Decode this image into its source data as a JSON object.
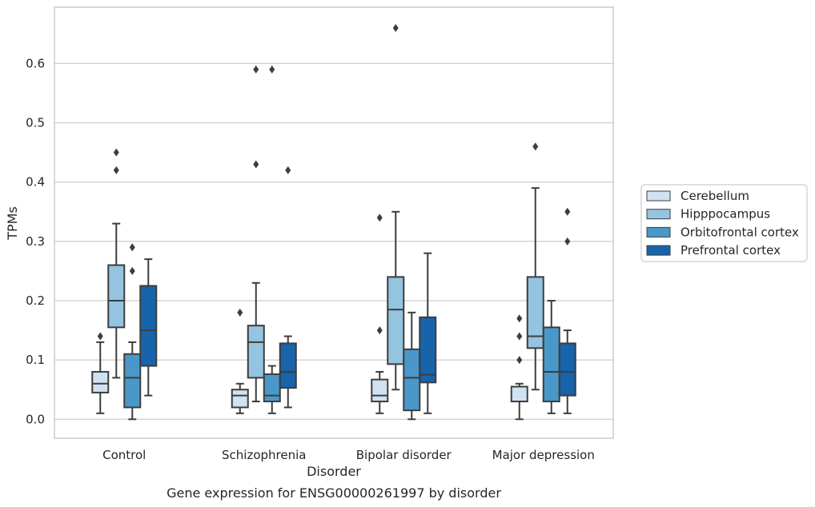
{
  "chart_data": {
    "type": "box",
    "xlabel": "Disorder",
    "ylabel": "TPMs",
    "caption": "Gene expression for ENSG00000261997 by disorder",
    "yticks": [
      "0.0",
      "0.1",
      "0.2",
      "0.3",
      "0.4",
      "0.5",
      "0.6"
    ],
    "ylim": [
      -0.032,
      0.695
    ],
    "grid": true,
    "legend_position": "right",
    "categories": [
      "Control",
      "Schizophrenia",
      "Bipolar disorder",
      "Major depression"
    ],
    "series": [
      {
        "name": "Cerebellum",
        "color": "#d0e1f2",
        "boxes": [
          {
            "whislo": 0.01,
            "q1": 0.045,
            "med": 0.06,
            "q3": 0.08,
            "whishi": 0.13,
            "fliers": [
              0.14
            ]
          },
          {
            "whislo": 0.01,
            "q1": 0.02,
            "med": 0.04,
            "q3": 0.05,
            "whishi": 0.06,
            "fliers": [
              0.18
            ]
          },
          {
            "whislo": 0.01,
            "q1": 0.03,
            "med": 0.04,
            "q3": 0.067,
            "whishi": 0.08,
            "fliers": [
              0.15,
              0.34
            ]
          },
          {
            "whislo": 0.0,
            "q1": 0.03,
            "med": 0.03,
            "q3": 0.055,
            "whishi": 0.06,
            "fliers": [
              0.1,
              0.14,
              0.17
            ]
          }
        ]
      },
      {
        "name": "Hipppocampus",
        "color": "#94c4df",
        "boxes": [
          {
            "whislo": 0.07,
            "q1": 0.155,
            "med": 0.2,
            "q3": 0.26,
            "whishi": 0.33,
            "fliers": [
              0.42,
              0.45
            ]
          },
          {
            "whislo": 0.03,
            "q1": 0.07,
            "med": 0.13,
            "q3": 0.158,
            "whishi": 0.23,
            "fliers": [
              0.43,
              0.59
            ]
          },
          {
            "whislo": 0.05,
            "q1": 0.093,
            "med": 0.185,
            "q3": 0.24,
            "whishi": 0.35,
            "fliers": [
              0.66
            ]
          },
          {
            "whislo": 0.05,
            "q1": 0.12,
            "med": 0.14,
            "q3": 0.24,
            "whishi": 0.39,
            "fliers": [
              0.46
            ]
          }
        ]
      },
      {
        "name": "Orbitofrontal cortex",
        "color": "#4a98c9",
        "boxes": [
          {
            "whislo": 0.0,
            "q1": 0.02,
            "med": 0.07,
            "q3": 0.11,
            "whishi": 0.13,
            "fliers": [
              0.25,
              0.29
            ]
          },
          {
            "whislo": 0.01,
            "q1": 0.03,
            "med": 0.04,
            "q3": 0.076,
            "whishi": 0.09,
            "fliers": [
              0.59
            ]
          },
          {
            "whislo": 0.0,
            "q1": 0.015,
            "med": 0.07,
            "q3": 0.118,
            "whishi": 0.18,
            "fliers": []
          },
          {
            "whislo": 0.01,
            "q1": 0.03,
            "med": 0.08,
            "q3": 0.155,
            "whishi": 0.2,
            "fliers": []
          }
        ]
      },
      {
        "name": "Prefrontal cortex",
        "color": "#1764ab",
        "boxes": [
          {
            "whislo": 0.04,
            "q1": 0.09,
            "med": 0.15,
            "q3": 0.225,
            "whishi": 0.27,
            "fliers": []
          },
          {
            "whislo": 0.02,
            "q1": 0.053,
            "med": 0.08,
            "q3": 0.128,
            "whishi": 0.14,
            "fliers": [
              0.42
            ]
          },
          {
            "whislo": 0.01,
            "q1": 0.062,
            "med": 0.075,
            "q3": 0.172,
            "whishi": 0.28,
            "fliers": []
          },
          {
            "whislo": 0.01,
            "q1": 0.04,
            "med": 0.08,
            "q3": 0.128,
            "whishi": 0.15,
            "fliers": [
              0.3,
              0.35
            ]
          }
        ]
      }
    ]
  }
}
